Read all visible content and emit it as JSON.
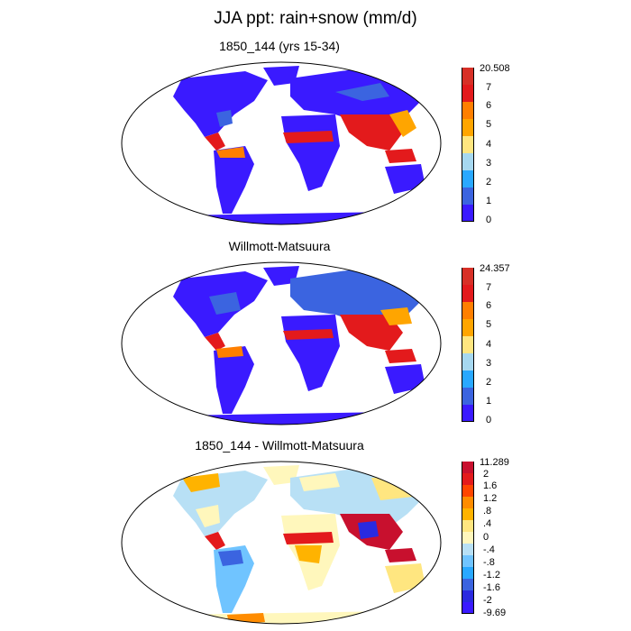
{
  "figure": {
    "title": "JJA ppt: rain+snow (mm/d)"
  },
  "panels": [
    {
      "title": "1850_144 (yrs 15-34)",
      "colorbar": {
        "labels": [
          "20.508",
          "7",
          "6",
          "5",
          "4",
          "3",
          "2",
          "1",
          "0"
        ],
        "colors": [
          "#d73027",
          "#e31a1c",
          "#ff7f00",
          "#ffa500",
          "#ffe680",
          "#a6d8f0",
          "#29a8ff",
          "#3b64e0",
          "#3a1aff"
        ]
      }
    },
    {
      "title": "Willmott-Matsuura",
      "colorbar": {
        "labels": [
          "24.357",
          "7",
          "6",
          "5",
          "4",
          "3",
          "2",
          "1",
          "0"
        ],
        "colors": [
          "#d73027",
          "#e31a1c",
          "#ff7f00",
          "#ffa500",
          "#ffe680",
          "#a6d8f0",
          "#29a8ff",
          "#3b64e0",
          "#3a1aff"
        ]
      }
    },
    {
      "title": "1850_144 - Willmott-Matsuura",
      "colorbar": {
        "labels": [
          "11.289",
          "2",
          "1.6",
          "1.2",
          ".8",
          ".4",
          "0",
          "-.4",
          "-.8",
          "-1.2",
          "-1.6",
          "-2",
          "-9.69"
        ],
        "colors": [
          "#c8102e",
          "#e31a1c",
          "#ff4500",
          "#ff8c00",
          "#ffb300",
          "#ffe680",
          "#fff7bc",
          "#b8e0f5",
          "#70c4ff",
          "#29a8ff",
          "#3b64e0",
          "#2a2ae0",
          "#3a1aff"
        ]
      }
    }
  ]
}
